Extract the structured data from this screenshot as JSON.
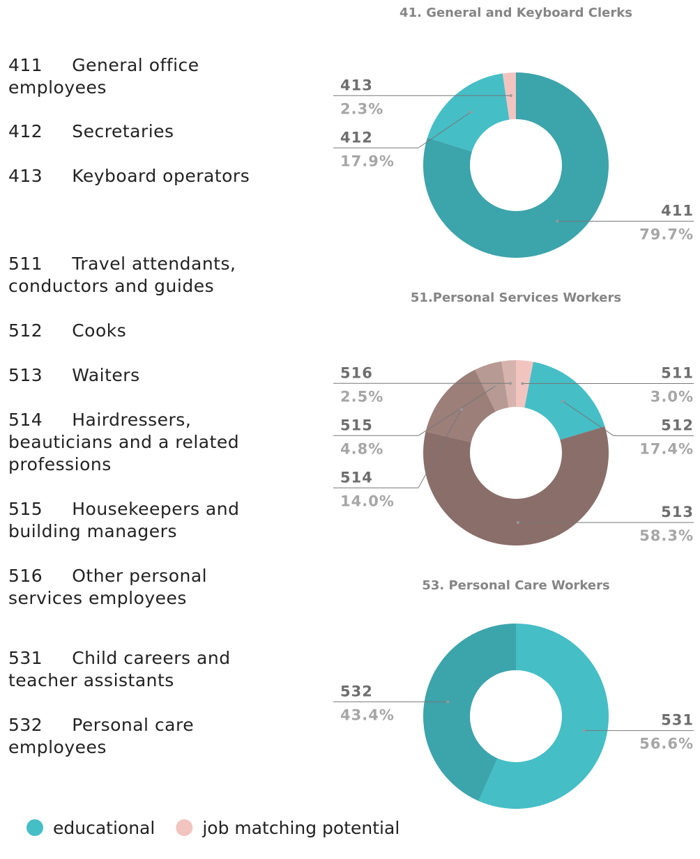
{
  "descriptions": [
    {
      "code": "411",
      "text": "General office employees"
    },
    {
      "code": "412",
      "text": "Secretaries"
    },
    {
      "code": "413",
      "text": "Keyboard operators"
    },
    {
      "code": "511",
      "text": "Travel attendants, conductors and guides"
    },
    {
      "code": "512",
      "text": "Cooks"
    },
    {
      "code": "513",
      "text": "Waiters"
    },
    {
      "code": "514",
      "text": "Hairdressers, beauticians and a related professions"
    },
    {
      "code": "515",
      "text": "Housekeepers and building managers"
    },
    {
      "code": "516",
      "text": "Other personal services employees"
    },
    {
      "code": "531",
      "text": "Child careers and teacher assistants"
    },
    {
      "code": "532",
      "text": "Personal care employees"
    }
  ],
  "legend": [
    {
      "label": "educational",
      "color": "#45bec6"
    },
    {
      "label": "job matching potential",
      "color": "#f2c4c0"
    }
  ],
  "chart_data": [
    {
      "type": "pie",
      "donut": true,
      "title": "41. General and Keyboard Clerks",
      "categories": [
        "411",
        "412",
        "413"
      ],
      "values": [
        79.7,
        17.9,
        2.3
      ],
      "value_labels": [
        "79.7%",
        "17.9%",
        "2.3%"
      ],
      "colors": [
        "#3ca4ab",
        "#45bec6",
        "#f2c4c0"
      ]
    },
    {
      "type": "pie",
      "donut": true,
      "title": "51.Personal Services Workers",
      "categories": [
        "511",
        "512",
        "513",
        "514",
        "515",
        "516"
      ],
      "values": [
        3.0,
        17.4,
        58.3,
        14.0,
        4.8,
        2.5
      ],
      "value_labels": [
        "3.0%",
        "17.4%",
        "58.3%",
        "14.0%",
        "4.8%",
        "2.5%"
      ],
      "colors": [
        "#f2c4c0",
        "#45bec6",
        "#8a6e6a",
        "#9c7f79",
        "#b79a93",
        "#d6b3ad"
      ]
    },
    {
      "type": "pie",
      "donut": true,
      "title": "53. Personal Care Workers",
      "categories": [
        "531",
        "532"
      ],
      "values": [
        56.6,
        43.4
      ],
      "value_labels": [
        "56.6%",
        "43.4%"
      ],
      "colors": [
        "#45bec6",
        "#3ca4ab"
      ]
    }
  ]
}
